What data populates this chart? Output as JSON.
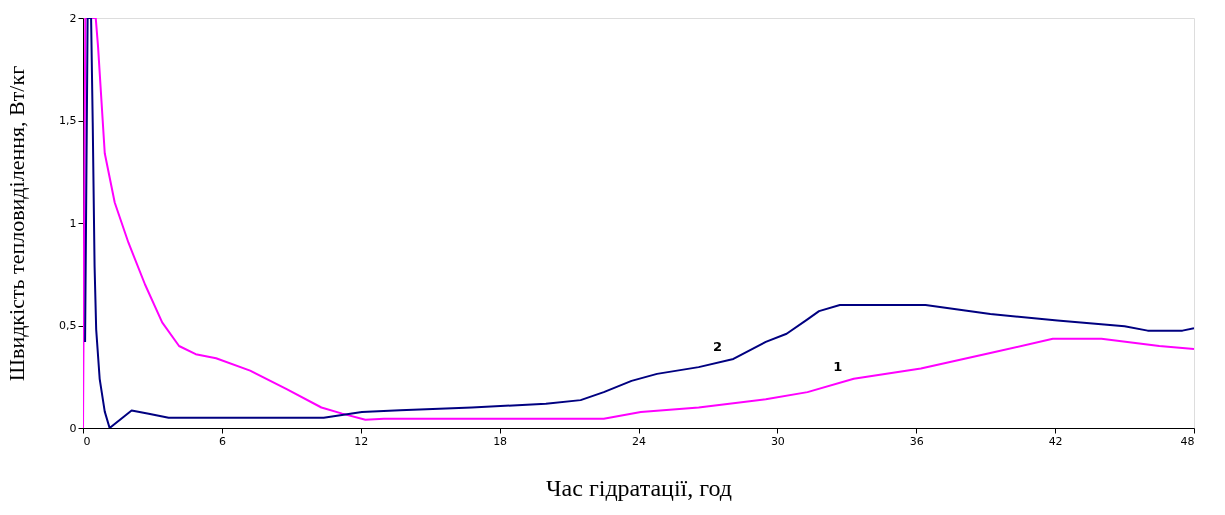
{
  "chart_data": {
    "type": "line",
    "xlabel": "Час гідратації,  год",
    "ylabel": "Швидкість тепловиділення, Вт/кг",
    "xlim": [
      0,
      48
    ],
    "ylim": [
      0,
      2
    ],
    "xticks": [
      0,
      6,
      12,
      18,
      24,
      30,
      36,
      42,
      48
    ],
    "yticks": [
      0,
      {
        "value": 0.5,
        "label": "0,5"
      },
      1,
      {
        "value": 1.5,
        "label": "1,5"
      },
      2
    ],
    "grid": false,
    "marker": "none",
    "line_style": "solid",
    "series": [
      {
        "name": "1",
        "color": "#ff00ff",
        "x": [
          0,
          0.1,
          0.55,
          0.65,
          0.94,
          1.37,
          1.96,
          2.68,
          3.42,
          4.15,
          4.87,
          5.75,
          7.22,
          8.8,
          10.3,
          11.2,
          12.2,
          13,
          18,
          22.5,
          24.1,
          26.6,
          29.5,
          31.3,
          33.3,
          36.2,
          39.2,
          41.9,
          44,
          46.5,
          48
        ],
        "values": [
          0,
          2,
          2,
          1.86,
          1.34,
          1.1,
          0.905,
          0.7,
          0.515,
          0.4,
          0.36,
          0.34,
          0.28,
          0.19,
          0.1,
          0.07,
          0.04,
          0.045,
          0.045,
          0.045,
          0.078,
          0.1,
          0.14,
          0.175,
          0.24,
          0.29,
          0.366,
          0.435,
          0.435,
          0.4,
          0.385
        ]
      },
      {
        "name": "2",
        "color": "#000080",
        "x": [
          0.09,
          0.2,
          0.35,
          0.42,
          0.5,
          0.57,
          0.72,
          0.94,
          1.15,
          2.1,
          2.84,
          3.7,
          10.4,
          12.05,
          13.7,
          16.8,
          20,
          21.5,
          22.5,
          23.7,
          24.8,
          26.6,
          28.1,
          29.5,
          30.4,
          31.3,
          31.8,
          32.7,
          36.4,
          39.2,
          42.1,
          45,
          46,
          47.5,
          48
        ],
        "values": [
          0.42,
          2,
          2,
          1.49,
          0.79,
          0.48,
          0.24,
          0.08,
          0,
          0.085,
          0.07,
          0.05,
          0.05,
          0.078,
          0.087,
          0.1,
          0.118,
          0.136,
          0.175,
          0.23,
          0.264,
          0.297,
          0.337,
          0.42,
          0.46,
          0.53,
          0.57,
          0.6,
          0.6,
          0.556,
          0.524,
          0.496,
          0.475,
          0.475,
          0.487
        ]
      }
    ]
  }
}
